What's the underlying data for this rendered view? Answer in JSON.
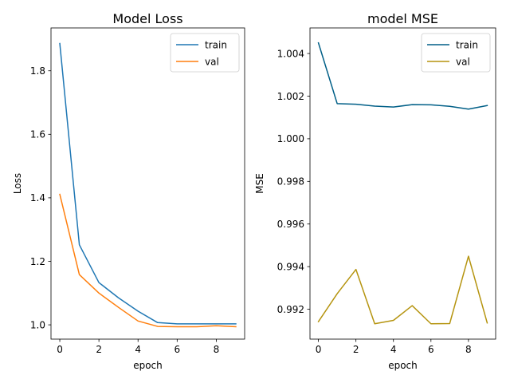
{
  "chart_data": [
    {
      "type": "line",
      "title": "Model Loss",
      "xlabel": "epoch",
      "ylabel": "Loss",
      "xlim": [
        -0.45,
        9.45
      ],
      "ylim": [
        0.955,
        1.935
      ],
      "xticks": [
        0,
        2,
        4,
        6,
        8
      ],
      "xtick_labels": [
        "0",
        "2",
        "4",
        "6",
        "8"
      ],
      "yticks": [
        1.0,
        1.2,
        1.4,
        1.6,
        1.8
      ],
      "ytick_labels": [
        "1.0",
        "1.2",
        "1.4",
        "1.6",
        "1.8"
      ],
      "legend": "top-right",
      "grid": false,
      "x": [
        0,
        1,
        2,
        3,
        4,
        5,
        6,
        7,
        8,
        9
      ],
      "series": [
        {
          "name": "train",
          "color": "#1f77b4",
          "values": [
            1.886,
            1.252,
            1.133,
            1.085,
            1.043,
            1.007,
            1.003,
            1.003,
            1.003,
            1.003
          ]
        },
        {
          "name": "val",
          "color": "#ff7f0e",
          "values": [
            1.411,
            1.158,
            1.1,
            1.055,
            1.012,
            0.995,
            0.994,
            0.994,
            0.997,
            0.994
          ]
        }
      ]
    },
    {
      "type": "line",
      "title": "model MSE",
      "xlabel": "epoch",
      "ylabel": "MSE",
      "xlim": [
        -0.45,
        9.45
      ],
      "ylim": [
        0.9906,
        1.0052
      ],
      "xticks": [
        0,
        2,
        4,
        6,
        8
      ],
      "xtick_labels": [
        "0",
        "2",
        "4",
        "6",
        "8"
      ],
      "yticks": [
        0.992,
        0.994,
        0.996,
        0.998,
        1.0,
        1.002,
        1.004
      ],
      "ytick_labels": [
        "0.992",
        "0.994",
        "0.996",
        "0.998",
        "1.000",
        "1.002",
        "1.004"
      ],
      "legend": "top-right",
      "grid": false,
      "x": [
        0,
        1,
        2,
        3,
        4,
        5,
        6,
        7,
        8,
        9
      ],
      "series": [
        {
          "name": "train",
          "color": "#005f87",
          "values": [
            1.0045,
            1.00165,
            1.00162,
            1.00153,
            1.00149,
            1.0016,
            1.00159,
            1.00152,
            1.00139,
            1.00156
          ]
        },
        {
          "name": "val",
          "color": "#b5940f",
          "values": [
            0.99142,
            0.99273,
            0.99387,
            0.99132,
            0.99148,
            0.99217,
            0.99132,
            0.99133,
            0.99449,
            0.99136
          ]
        }
      ]
    }
  ]
}
